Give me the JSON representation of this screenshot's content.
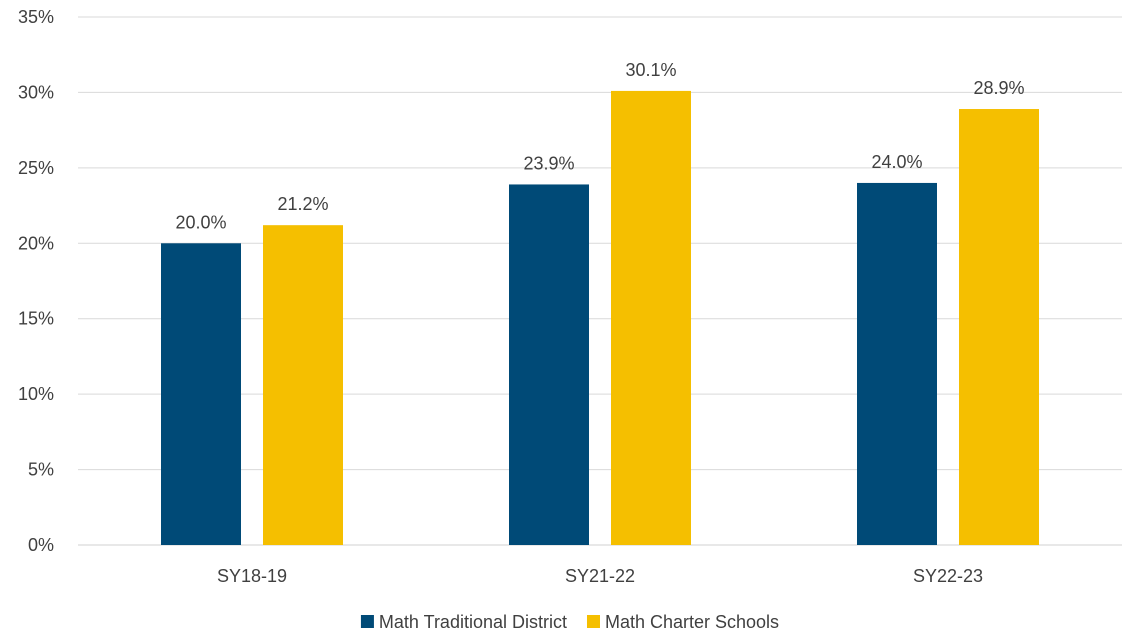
{
  "chart_data": {
    "type": "bar",
    "title": "",
    "xlabel": "",
    "ylabel": "",
    "categories": [
      "SY18-19",
      "SY21-22",
      "SY22-23"
    ],
    "series": [
      {
        "name": "Math Traditional District",
        "color": "#004a77",
        "values": [
          20.0,
          23.9,
          24.0
        ],
        "labels": [
          "20.0%",
          "23.9%",
          "24.0%"
        ]
      },
      {
        "name": "Math Charter Schools",
        "color": "#f5bf00",
        "values": [
          21.2,
          30.1,
          28.9
        ],
        "labels": [
          "21.2%",
          "30.1%",
          "28.9%"
        ]
      }
    ],
    "ylim": [
      0,
      35
    ],
    "y_ticks": [
      0,
      5,
      10,
      15,
      20,
      25,
      30,
      35
    ],
    "y_tick_labels": [
      "0%",
      "5%",
      "10%",
      "15%",
      "20%",
      "25%",
      "30%",
      "35%"
    ],
    "grid": true,
    "legend_position": "bottom"
  }
}
